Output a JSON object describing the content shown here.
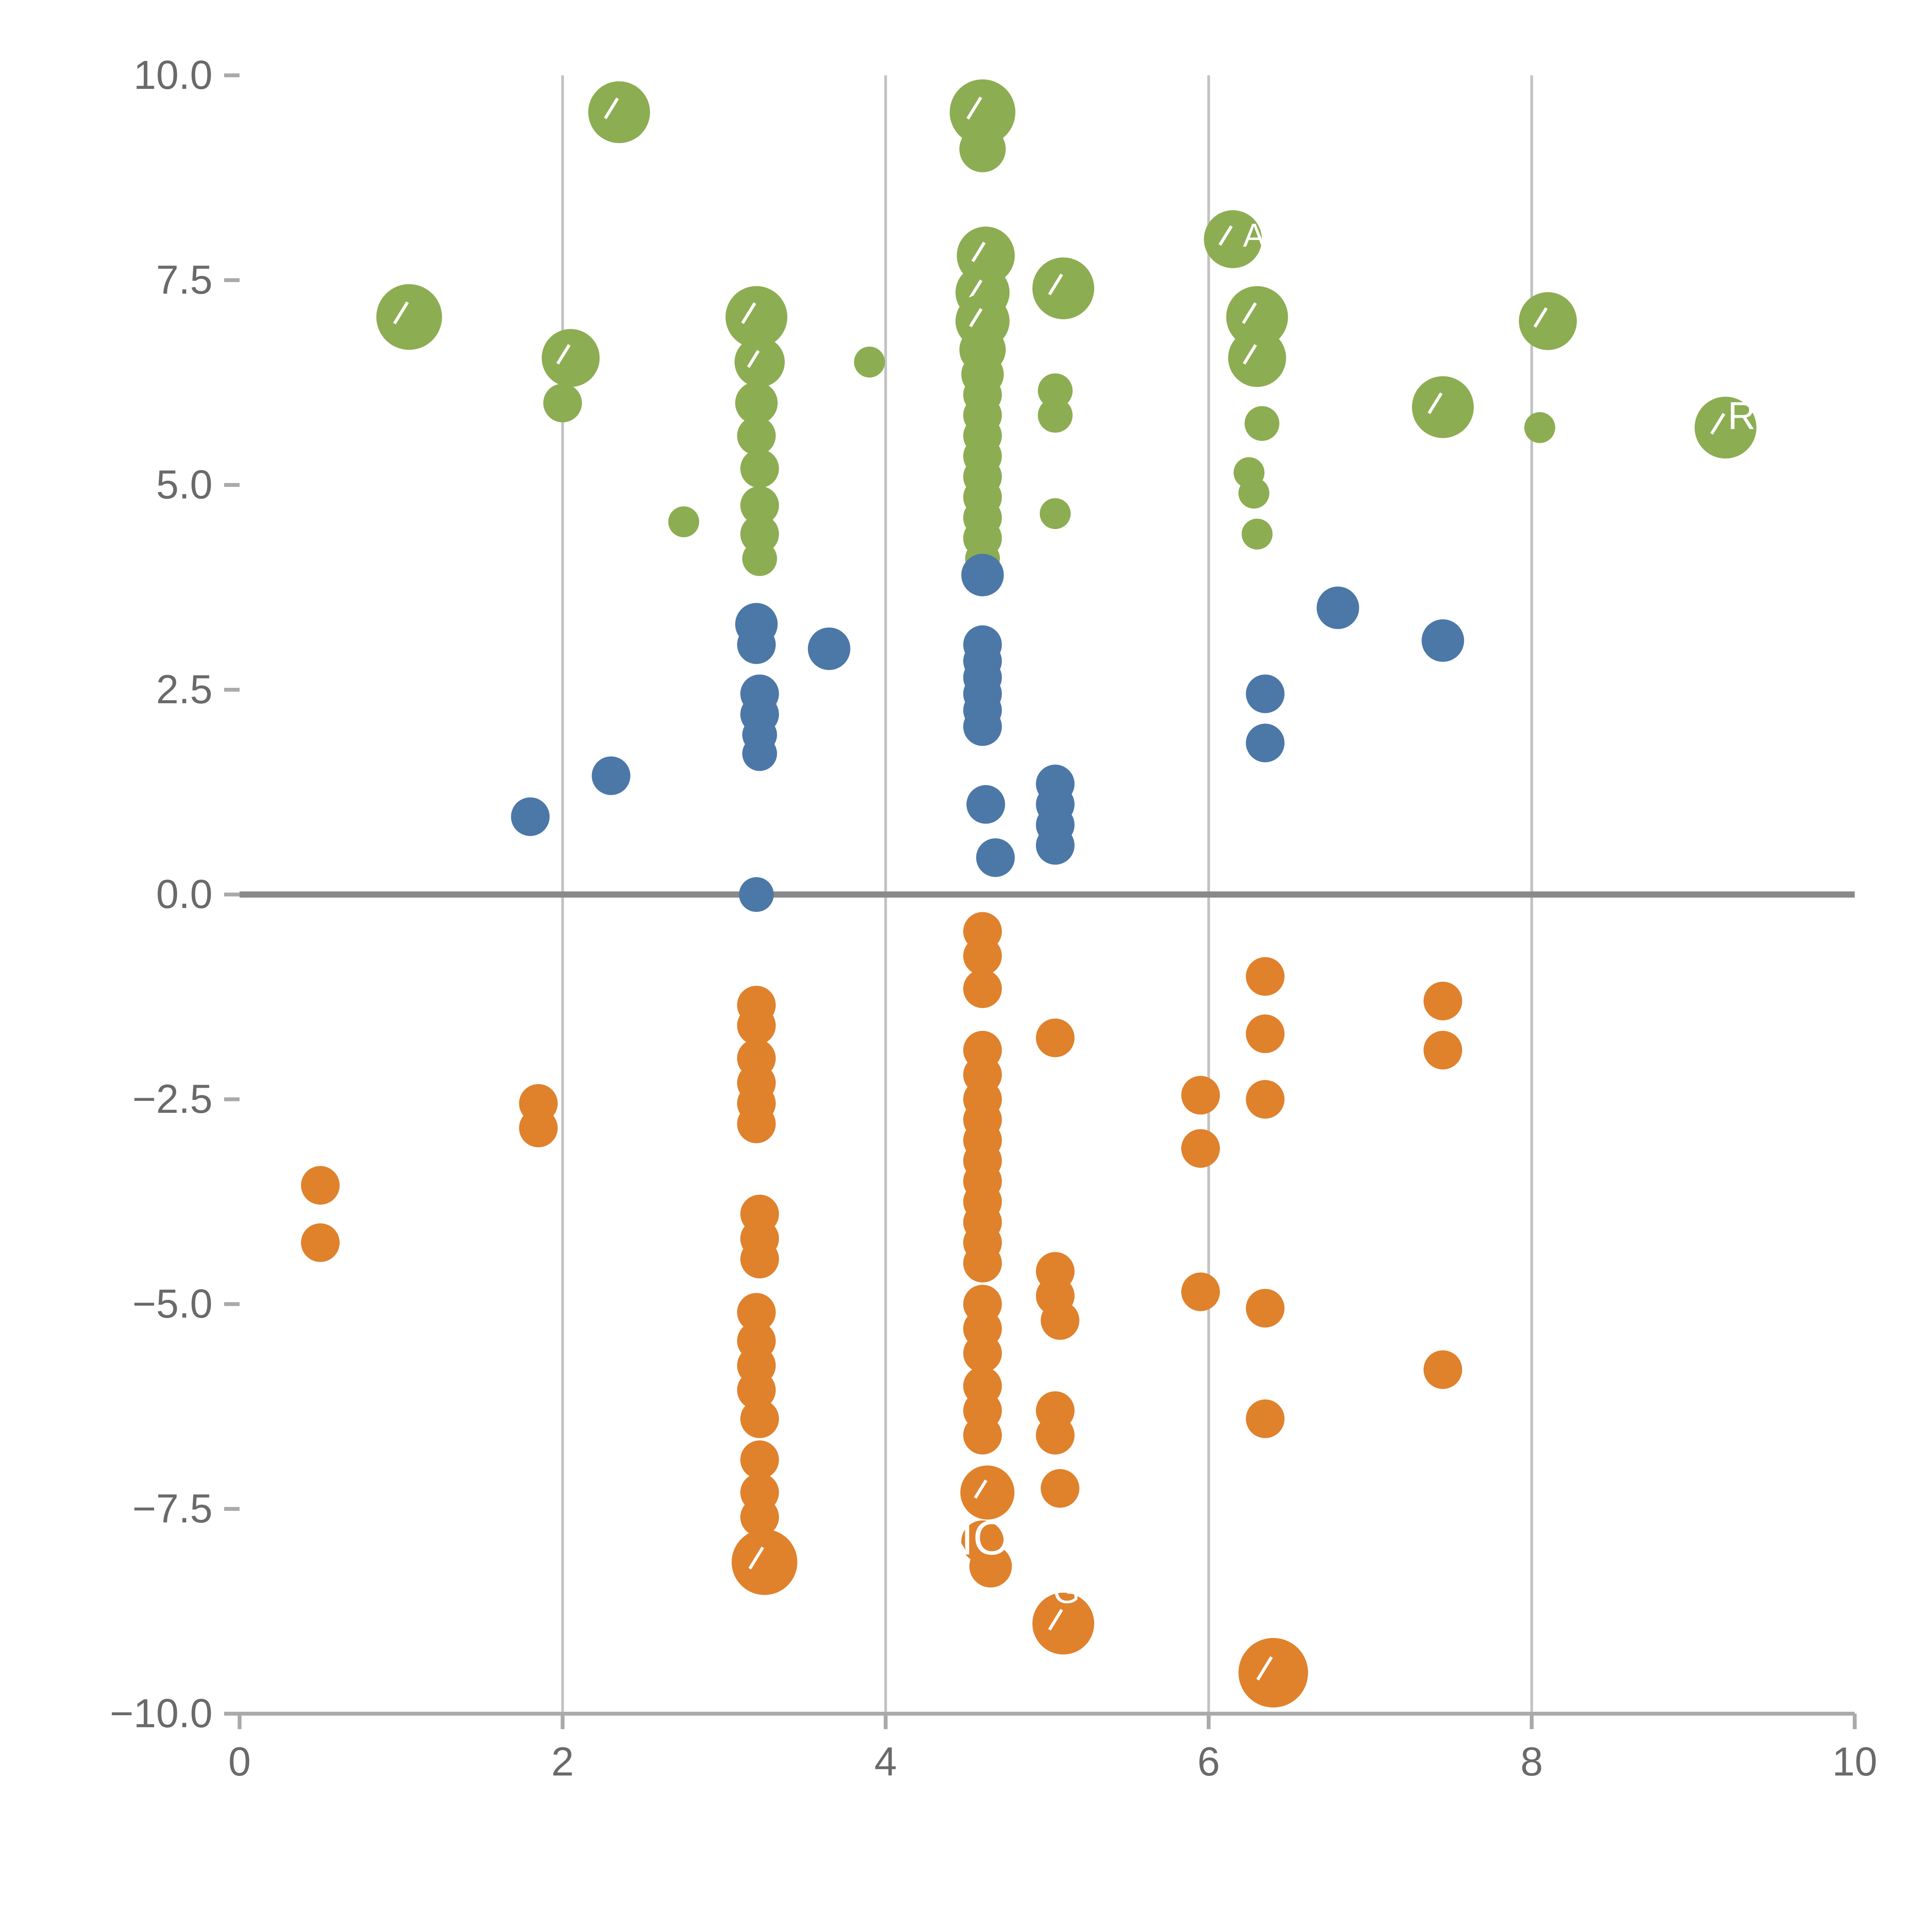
{
  "chart_data": {
    "type": "scatter",
    "title": "",
    "xlabel": "",
    "ylabel": "",
    "xlim": [
      0,
      10
    ],
    "ylim": [
      -10,
      10
    ],
    "x_ticks": [
      "0",
      "2",
      "4",
      "6",
      "8",
      "10"
    ],
    "x_tick_values": [
      0,
      2,
      4,
      6,
      8,
      10
    ],
    "y_ticks": [
      "10.0",
      "7.5",
      "5.0",
      "2.5",
      "0.0",
      "−2.5",
      "−5.0",
      "−7.5",
      "−10.0"
    ],
    "y_tick_values": [
      10,
      7.5,
      5,
      2.5,
      0,
      -2.5,
      -5,
      -7.5,
      -10
    ],
    "grid": {
      "vertical_at": [
        2,
        4,
        6,
        8
      ],
      "zero_line": true
    },
    "legend": "none",
    "colors": {
      "green": "#8cad52",
      "blue": "#4c78a8",
      "orange": "#e0812c",
      "grid": "#c2c2c2",
      "zero_line": "#8a8a8a",
      "axis": "#aaaaaa",
      "tick_label": "#6a6a6a",
      "bubble_label": "#ffffff",
      "background": "#ffffff"
    },
    "series": [
      {
        "name": "green-group",
        "color_key": "green",
        "points": [
          [
            1.05,
            7.05,
            17
          ],
          [
            2.05,
            6.55,
            15
          ],
          [
            2.0,
            6.0,
            10
          ],
          [
            2.35,
            9.55,
            16
          ],
          [
            2.75,
            4.55,
            8
          ],
          [
            3.2,
            7.05,
            16
          ],
          [
            3.22,
            6.5,
            13
          ],
          [
            3.2,
            6.0,
            11
          ],
          [
            3.2,
            5.6,
            10
          ],
          [
            3.22,
            5.2,
            10
          ],
          [
            3.22,
            4.75,
            10
          ],
          [
            3.22,
            4.4,
            10
          ],
          [
            3.22,
            4.1,
            9
          ],
          [
            3.9,
            6.5,
            8
          ],
          [
            4.6,
            9.55,
            17
          ],
          [
            4.6,
            9.1,
            12
          ],
          [
            4.62,
            7.8,
            15
          ],
          [
            4.6,
            7.35,
            14
          ],
          [
            4.6,
            7.0,
            14
          ],
          [
            4.6,
            6.65,
            12
          ],
          [
            4.6,
            6.35,
            11
          ],
          [
            4.6,
            6.1,
            10
          ],
          [
            4.6,
            5.85,
            10
          ],
          [
            4.6,
            5.6,
            10
          ],
          [
            4.6,
            5.35,
            10
          ],
          [
            4.6,
            5.1,
            10
          ],
          [
            4.6,
            4.85,
            10
          ],
          [
            4.6,
            4.6,
            10
          ],
          [
            4.6,
            4.35,
            10
          ],
          [
            4.6,
            4.1,
            9
          ],
          [
            5.1,
            7.4,
            16
          ],
          [
            5.05,
            6.15,
            9
          ],
          [
            5.05,
            5.85,
            9
          ],
          [
            5.05,
            4.65,
            8
          ],
          [
            6.15,
            8.0,
            15
          ],
          [
            6.3,
            7.05,
            16
          ],
          [
            6.3,
            6.55,
            15
          ],
          [
            6.33,
            5.75,
            9
          ],
          [
            6.25,
            5.15,
            8
          ],
          [
            6.28,
            4.9,
            8
          ],
          [
            6.3,
            4.4,
            8
          ],
          [
            7.45,
            5.95,
            16
          ],
          [
            8.1,
            7.0,
            15
          ],
          [
            8.05,
            5.7,
            8
          ],
          [
            9.2,
            5.7,
            16
          ]
        ]
      },
      {
        "name": "blue-group",
        "color_key": "blue",
        "points": [
          [
            1.8,
            0.95,
            10
          ],
          [
            2.3,
            1.45,
            10
          ],
          [
            3.2,
            3.3,
            11
          ],
          [
            3.2,
            3.05,
            10
          ],
          [
            3.22,
            2.45,
            10
          ],
          [
            3.22,
            2.2,
            10
          ],
          [
            3.22,
            1.95,
            9
          ],
          [
            3.22,
            1.72,
            9
          ],
          [
            3.2,
            0.0,
            9
          ],
          [
            3.65,
            3.0,
            11
          ],
          [
            4.6,
            3.9,
            11
          ],
          [
            4.6,
            3.05,
            10
          ],
          [
            4.6,
            2.85,
            10
          ],
          [
            4.6,
            2.65,
            10
          ],
          [
            4.6,
            2.45,
            10
          ],
          [
            4.6,
            2.25,
            10
          ],
          [
            4.6,
            2.05,
            10
          ],
          [
            4.62,
            1.1,
            10
          ],
          [
            4.68,
            0.45,
            10
          ],
          [
            5.05,
            1.35,
            10
          ],
          [
            5.05,
            1.1,
            10
          ],
          [
            5.05,
            0.85,
            10
          ],
          [
            5.05,
            0.6,
            10
          ],
          [
            6.35,
            2.45,
            10
          ],
          [
            6.35,
            1.85,
            10
          ],
          [
            6.8,
            3.5,
            11
          ],
          [
            7.45,
            3.1,
            11
          ]
        ]
      },
      {
        "name": "orange-group",
        "color_key": "orange",
        "points": [
          [
            0.5,
            -3.55,
            10
          ],
          [
            0.5,
            -4.25,
            10
          ],
          [
            1.85,
            -2.55,
            10
          ],
          [
            1.85,
            -2.85,
            10
          ],
          [
            3.2,
            -1.35,
            10
          ],
          [
            3.2,
            -1.6,
            10
          ],
          [
            3.2,
            -2.0,
            10
          ],
          [
            3.2,
            -2.3,
            10
          ],
          [
            3.2,
            -2.55,
            10
          ],
          [
            3.2,
            -2.8,
            10
          ],
          [
            3.22,
            -3.9,
            10
          ],
          [
            3.22,
            -4.2,
            10
          ],
          [
            3.22,
            -4.45,
            10
          ],
          [
            3.2,
            -5.1,
            10
          ],
          [
            3.2,
            -5.45,
            10
          ],
          [
            3.2,
            -5.75,
            10
          ],
          [
            3.2,
            -6.05,
            10
          ],
          [
            3.22,
            -6.4,
            10
          ],
          [
            3.22,
            -6.9,
            10
          ],
          [
            3.22,
            -7.3,
            10
          ],
          [
            3.22,
            -7.6,
            10
          ],
          [
            3.25,
            -8.15,
            17
          ],
          [
            4.6,
            -0.45,
            10
          ],
          [
            4.6,
            -0.75,
            10
          ],
          [
            4.6,
            -1.15,
            10
          ],
          [
            4.6,
            -1.9,
            10
          ],
          [
            4.6,
            -2.2,
            10
          ],
          [
            4.6,
            -2.5,
            10
          ],
          [
            4.6,
            -2.75,
            10
          ],
          [
            4.6,
            -3.0,
            10
          ],
          [
            4.6,
            -3.25,
            10
          ],
          [
            4.6,
            -3.5,
            10
          ],
          [
            4.6,
            -3.75,
            10
          ],
          [
            4.6,
            -4.0,
            10
          ],
          [
            4.6,
            -4.25,
            10
          ],
          [
            4.6,
            -4.5,
            10
          ],
          [
            4.6,
            -5.0,
            10
          ],
          [
            4.6,
            -5.3,
            10
          ],
          [
            4.6,
            -5.6,
            10
          ],
          [
            4.6,
            -6.0,
            10
          ],
          [
            4.6,
            -6.3,
            10
          ],
          [
            4.6,
            -6.6,
            10
          ],
          [
            4.63,
            -7.3,
            14
          ],
          [
            4.6,
            -7.9,
            11
          ],
          [
            4.65,
            -8.2,
            11
          ],
          [
            5.05,
            -1.75,
            10
          ],
          [
            5.05,
            -4.6,
            10
          ],
          [
            5.05,
            -4.9,
            10
          ],
          [
            5.08,
            -5.2,
            10
          ],
          [
            5.05,
            -6.3,
            10
          ],
          [
            5.05,
            -6.6,
            10
          ],
          [
            5.08,
            -7.25,
            10
          ],
          [
            5.1,
            -8.9,
            16
          ],
          [
            5.95,
            -2.45,
            10
          ],
          [
            5.95,
            -3.1,
            10
          ],
          [
            5.95,
            -4.85,
            10
          ],
          [
            6.35,
            -1.0,
            10
          ],
          [
            6.35,
            -1.7,
            10
          ],
          [
            6.35,
            -2.5,
            10
          ],
          [
            6.35,
            -5.05,
            10
          ],
          [
            6.35,
            -6.4,
            10
          ],
          [
            6.4,
            -9.5,
            18
          ],
          [
            7.45,
            -1.3,
            10
          ],
          [
            7.45,
            -1.9,
            10
          ],
          [
            7.45,
            -5.8,
            10
          ]
        ]
      }
    ],
    "annotations": [
      {
        "text": "R",
        "x": 9.3,
        "y": 5.85,
        "font_size": 20
      },
      {
        "text": "A",
        "x": 6.28,
        "y": 8.05,
        "font_size": 17
      },
      {
        "text": "NO",
        "x": 4.55,
        "y": -7.85,
        "font_size": 25
      },
      {
        "text": "G",
        "x": 5.12,
        "y": -8.5,
        "font_size": 18
      }
    ],
    "layout_hints": {
      "slash_on_large_bubbles": true,
      "large_bubble_min_radius": 13
    }
  }
}
